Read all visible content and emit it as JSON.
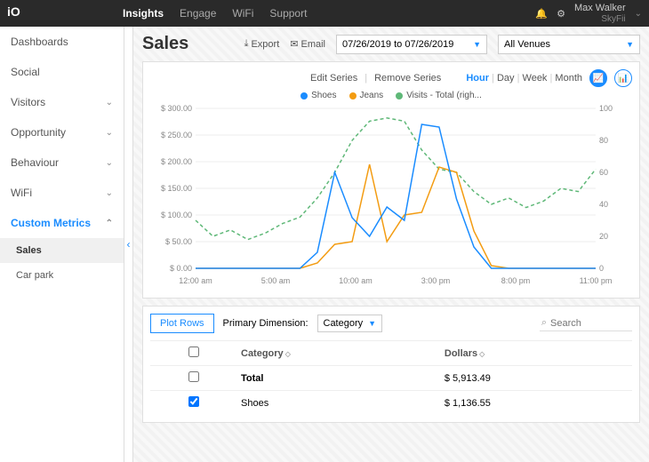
{
  "topnav": {
    "items": [
      "Insights",
      "Engage",
      "WiFi",
      "Support"
    ],
    "active": 0
  },
  "user": {
    "name": "Max Walker",
    "org": "SkyFii"
  },
  "sidebar": {
    "items": [
      {
        "label": "Dashboards",
        "expand": false,
        "chev": false
      },
      {
        "label": "Social",
        "expand": false,
        "chev": false
      },
      {
        "label": "Visitors",
        "expand": false,
        "chev": true
      },
      {
        "label": "Opportunity",
        "expand": false,
        "chev": true
      },
      {
        "label": "Behaviour",
        "expand": false,
        "chev": true
      },
      {
        "label": "WiFi",
        "expand": false,
        "chev": true
      },
      {
        "label": "Custom Metrics",
        "expand": true,
        "chev": true,
        "active": true,
        "sub": [
          {
            "label": "Sales",
            "sel": true
          },
          {
            "label": "Car park",
            "sel": false
          }
        ]
      }
    ]
  },
  "page": {
    "title": "Sales",
    "export": "Export",
    "email": "Email",
    "daterange": "07/26/2019 to 07/26/2019",
    "venue": "All Venues"
  },
  "chart": {
    "edit_series": "Edit Series",
    "remove_series": "Remove Series",
    "grains": [
      "Hour",
      "Day",
      "Week",
      "Month"
    ],
    "grain_active": 0,
    "legend": [
      {
        "label": "Shoes",
        "color": "#1a8cff"
      },
      {
        "label": "Jeans",
        "color": "#f39c12"
      },
      {
        "label": "Visits - Total (righ...",
        "color": "#5fb878"
      }
    ],
    "left_axis": {
      "min": 0,
      "max": 300,
      "step": 50,
      "prefix": "$ ",
      "suffix": ".00"
    },
    "right_axis": {
      "min": 0,
      "max": 100,
      "step": 20
    },
    "x_ticks": [
      "12:00 am",
      "5:00 am",
      "10:00 am",
      "3:00 pm",
      "8:00 pm",
      "11:00 pm"
    ],
    "series_shoes": {
      "color": "#1a8cff",
      "dash": false,
      "values": [
        0,
        0,
        0,
        0,
        0,
        0,
        0,
        30,
        180,
        95,
        60,
        115,
        90,
        270,
        265,
        130,
        40,
        0,
        0,
        0,
        0,
        0,
        0,
        0
      ]
    },
    "series_jeans": {
      "color": "#f39c12",
      "dash": false,
      "values": [
        0,
        0,
        0,
        0,
        0,
        0,
        0,
        10,
        45,
        50,
        195,
        50,
        100,
        105,
        190,
        180,
        70,
        5,
        0,
        0,
        0,
        0,
        0,
        0
      ]
    },
    "series_visits": {
      "color": "#5fb878",
      "dash": true,
      "right_axis": true,
      "values": [
        30,
        20,
        24,
        18,
        22,
        28,
        32,
        44,
        60,
        80,
        92,
        94,
        92,
        74,
        62,
        60,
        48,
        40,
        44,
        38,
        42,
        50,
        48,
        62
      ]
    },
    "plot_bg": "#ffffff",
    "grid_color": "#eeeeee"
  },
  "table": {
    "plot_rows": "Plot Rows",
    "dim_label": "Primary Dimension:",
    "dim_value": "Category",
    "search_placeholder": "Search",
    "columns": [
      "Category",
      "Dollars"
    ],
    "rows": [
      {
        "checked": false,
        "category": "Total",
        "dollars": "$ 5,913.49",
        "bold": true
      },
      {
        "checked": true,
        "category": "Shoes",
        "dollars": "$ 1,136.55"
      }
    ]
  }
}
